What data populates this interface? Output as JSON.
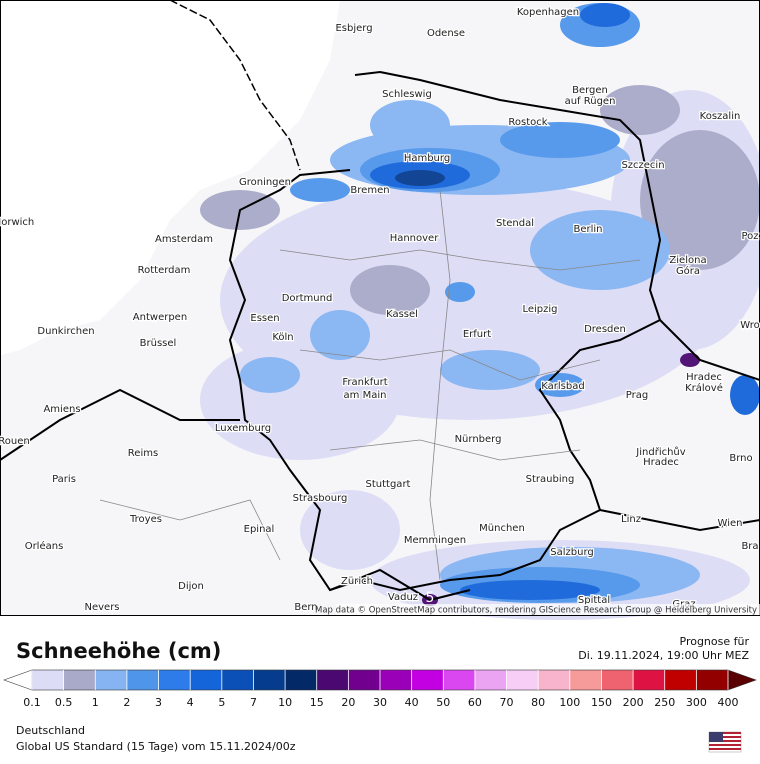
{
  "map": {
    "cities": [
      "Esbjerg",
      "Odense",
      "Kopenhagen",
      "Schleswig",
      "Bergen",
      "auf Rügen",
      "Rostock",
      "Koszalin",
      "Hamburg",
      "Szczecin",
      "Groningen",
      "Bremen",
      "Norwich",
      "Stendal",
      "Berlin",
      "Amsterdam",
      "Hannover",
      "Poz",
      "Zielona",
      "Góra",
      "Rotterdam",
      "Dortmund",
      "Leipzig",
      "Antwerpen",
      "Essen",
      "Kassel",
      "Wro",
      "Dunkirchen",
      "Erfurt",
      "Dresden",
      "Brüssel",
      "Köln",
      "Frankfurt",
      "am Main",
      "Hradec",
      "Králové",
      "Karlsbad",
      "Amiens",
      "Prag",
      "Luxemburg",
      "Rouen",
      "Nürnberg",
      "Reims",
      "Jindřichův",
      "Hradec",
      "Brno",
      "Paris",
      "Straubing",
      "Stuttgart",
      "Strasbourg",
      "Troyes",
      "Linz",
      "Epinal",
      "München",
      "Wien",
      "Memmingen",
      "Orléans",
      "Bra",
      "Salzburg",
      "Zürich",
      "Dijon",
      "Vaduz",
      "Spittal",
      "Graz",
      "Bern",
      "Nevers"
    ],
    "max_label": 5,
    "attribution": "Map data © OpenStreetMap contributors, rendering GIScience Research Group @ Heidelberg University"
  },
  "legend": {
    "title": "Schneehöhe (cm)",
    "ticks": [
      0.1,
      0.5,
      1,
      2,
      3,
      4,
      5,
      7,
      10,
      15,
      20,
      30,
      40,
      50,
      60,
      70,
      80,
      100,
      150,
      200,
      250,
      300,
      400
    ],
    "colors": [
      "#dcdcf6",
      "#a9a9c9",
      "#86b4f2",
      "#4f95ea",
      "#2d7cea",
      "#1464da",
      "#0a50b6",
      "#063c8e",
      "#032a66",
      "#4a0870",
      "#72008e",
      "#9a00b8",
      "#c200e2",
      "#da46f0",
      "#eaa4f2",
      "#f6cef6",
      "#f8b4cc",
      "#f79a9a",
      "#ef6270",
      "#df1244",
      "#c00000",
      "#920000"
    ],
    "low_color": "#ffffff",
    "high_color": "#5a0000"
  },
  "forecast": {
    "label": "Prognose für",
    "time": "Di. 19.11.2024, 19:00 Uhr MEZ"
  },
  "footer": {
    "region": "Deutschland",
    "model": "Global US Standard (15 Tage) vom  15.11.2024/00z"
  }
}
